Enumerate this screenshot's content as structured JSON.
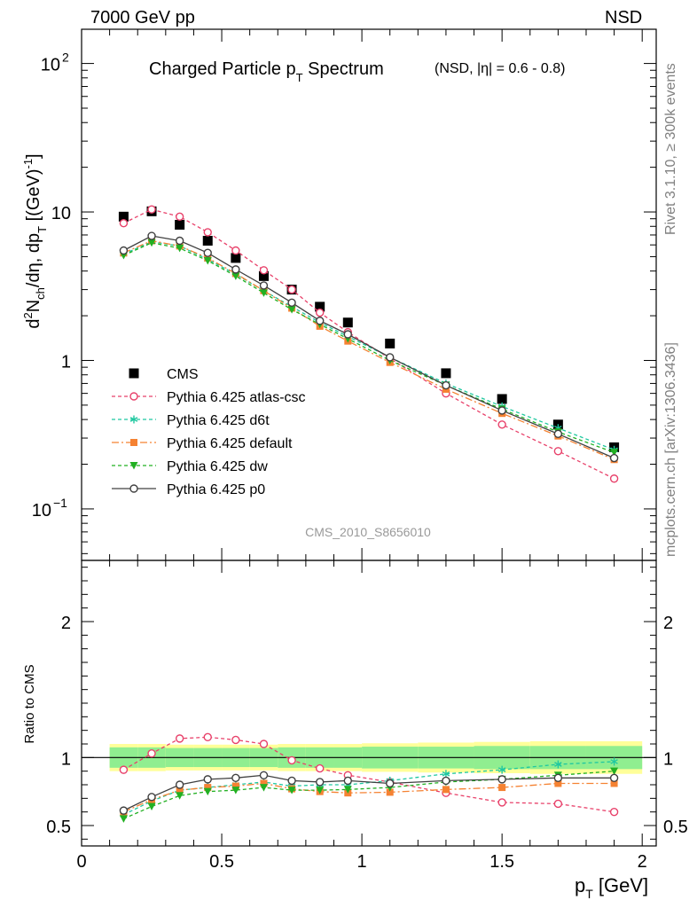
{
  "header": {
    "left": "7000 GeV pp",
    "right": "NSD"
  },
  "side_labels": {
    "rivet": "Rivet 3.1.10, ≥ 300k events",
    "mcplots": "mcplots.cern.ch [arXiv:1306.3436]"
  },
  "chart_data": [
    {
      "type": "scatter",
      "title_main": "Charged Particle p",
      "title_main_sub": "T",
      "title_main_tail": " Spectrum",
      "title_note": "(NSD, |η| = 0.6 - 0.8)",
      "analysis_tag": "CMS_2010_S8656010",
      "ylabel": "d²N_ch/dη, dp_T [(GeV)⁻¹]",
      "ylabel_parts": {
        "d": "d",
        "sup2": "2",
        "N": "N",
        "ch": "ch",
        "mid": "/dη, dp",
        "T": "T",
        "bracket": " [(GeV)",
        "minus1": "-1",
        "close": "]"
      },
      "yscale": "log",
      "ylim": [
        0.045,
        170
      ],
      "xlim": [
        0,
        2.05
      ],
      "ytick_labels": [
        "10",
        "1",
        "10"
      ],
      "ytick_special": {
        "10^2": {
          "base": "10",
          "exp": "2"
        },
        "10^-1": {
          "base": "10",
          "exp": "−1"
        }
      },
      "legend_position": "lower-left",
      "x": [
        0.15,
        0.25,
        0.35,
        0.45,
        0.55,
        0.65,
        0.75,
        0.85,
        0.95,
        1.1,
        1.3,
        1.5,
        1.7,
        1.9
      ],
      "series": [
        {
          "name": "CMS",
          "color": "#000000",
          "marker": "square",
          "values": [
            9.3,
            10.1,
            8.2,
            6.4,
            4.9,
            3.7,
            3.0,
            2.3,
            1.8,
            1.3,
            0.82,
            0.55,
            0.37,
            0.26
          ]
        },
        {
          "name": "Pythia 6.425 atlas-csc",
          "color": "#e8416a",
          "marker": "open-circle",
          "dash": "4,3",
          "values": [
            8.4,
            10.4,
            9.3,
            7.3,
            5.5,
            4.05,
            3.0,
            2.1,
            1.55,
            1.03,
            0.6,
            0.37,
            0.245,
            0.16
          ]
        },
        {
          "name": "Pythia 6.425 d6t",
          "color": "#1fc8a0",
          "marker": "asterisk",
          "dash": "4,3",
          "values": [
            5.2,
            6.3,
            5.9,
            4.8,
            3.8,
            2.95,
            2.3,
            1.8,
            1.45,
            1.05,
            0.7,
            0.49,
            0.35,
            0.25
          ]
        },
        {
          "name": "Pythia 6.425 default",
          "color": "#f58232",
          "marker": "square-small",
          "dash": "8,3,2,3",
          "values": [
            5.3,
            6.4,
            5.9,
            4.9,
            3.85,
            2.95,
            2.25,
            1.7,
            1.35,
            0.97,
            0.64,
            0.44,
            0.31,
            0.215
          ]
        },
        {
          "name": "Pythia 6.425 dw",
          "color": "#22b022",
          "marker": "triangle-down",
          "dash": "4,3",
          "values": [
            5.1,
            6.2,
            5.7,
            4.7,
            3.7,
            2.85,
            2.2,
            1.75,
            1.4,
            1.0,
            0.68,
            0.47,
            0.33,
            0.24
          ]
        },
        {
          "name": "Pythia 6.425 p0",
          "color": "#404040",
          "marker": "open-circle",
          "dash": "",
          "values": [
            5.5,
            6.9,
            6.4,
            5.3,
            4.1,
            3.2,
            2.45,
            1.85,
            1.5,
            1.05,
            0.68,
            0.46,
            0.32,
            0.22
          ]
        }
      ]
    },
    {
      "type": "scatter",
      "xlabel": "p",
      "xlabel_sub": "T",
      "xlabel_tail": " [GeV]",
      "ylabel": "Ratio to CMS",
      "ylim": [
        0.35,
        2.45
      ],
      "xlim": [
        0,
        2.05
      ],
      "xtick_labels": [
        "0",
        "0.5",
        "1",
        "1.5",
        "2"
      ],
      "ytick_labels": [
        "0.5",
        "1",
        "2"
      ],
      "uncertainty_band": {
        "x_edges": [
          0.1,
          0.2,
          0.3,
          0.4,
          0.5,
          0.6,
          0.7,
          0.8,
          0.9,
          1.0,
          1.2,
          1.4,
          1.6,
          1.8,
          2.0
        ],
        "inner": [
          0.075,
          0.075,
          0.07,
          0.07,
          0.07,
          0.07,
          0.075,
          0.075,
          0.075,
          0.08,
          0.08,
          0.085,
          0.085,
          0.085
        ],
        "outer": [
          0.1,
          0.1,
          0.095,
          0.095,
          0.095,
          0.095,
          0.1,
          0.1,
          0.1,
          0.105,
          0.11,
          0.115,
          0.12,
          0.12
        ],
        "inner_color": "#90ee90",
        "outer_color": "#ffff99"
      },
      "x": [
        0.15,
        0.25,
        0.35,
        0.45,
        0.55,
        0.65,
        0.75,
        0.85,
        0.95,
        1.1,
        1.3,
        1.5,
        1.7,
        1.9
      ],
      "series": [
        {
          "name": "Pythia 6.425 atlas-csc",
          "color": "#e8416a",
          "marker": "open-circle",
          "dash": "4,3",
          "values": [
            0.91,
            1.03,
            1.14,
            1.15,
            1.13,
            1.1,
            0.98,
            0.92,
            0.87,
            0.82,
            0.74,
            0.67,
            0.66,
            0.6
          ]
        },
        {
          "name": "Pythia 6.425 d6t",
          "color": "#1fc8a0",
          "marker": "asterisk",
          "dash": "4,3",
          "values": [
            0.58,
            0.68,
            0.76,
            0.78,
            0.8,
            0.82,
            0.79,
            0.8,
            0.8,
            0.83,
            0.88,
            0.91,
            0.95,
            0.97
          ]
        },
        {
          "name": "Pythia 6.425 default",
          "color": "#f58232",
          "marker": "square-small",
          "dash": "8,3,2,3",
          "values": [
            0.6,
            0.69,
            0.76,
            0.78,
            0.79,
            0.81,
            0.77,
            0.75,
            0.74,
            0.745,
            0.765,
            0.78,
            0.81,
            0.81
          ]
        },
        {
          "name": "Pythia 6.425 dw",
          "color": "#22b022",
          "marker": "triangle-down",
          "dash": "4,3",
          "values": [
            0.55,
            0.64,
            0.72,
            0.75,
            0.76,
            0.78,
            0.76,
            0.76,
            0.765,
            0.78,
            0.82,
            0.84,
            0.87,
            0.9
          ]
        },
        {
          "name": "Pythia 6.425 p0",
          "color": "#404040",
          "marker": "open-circle",
          "dash": "",
          "values": [
            0.61,
            0.71,
            0.8,
            0.84,
            0.85,
            0.87,
            0.83,
            0.82,
            0.83,
            0.81,
            0.83,
            0.84,
            0.85,
            0.85
          ]
        }
      ]
    }
  ]
}
